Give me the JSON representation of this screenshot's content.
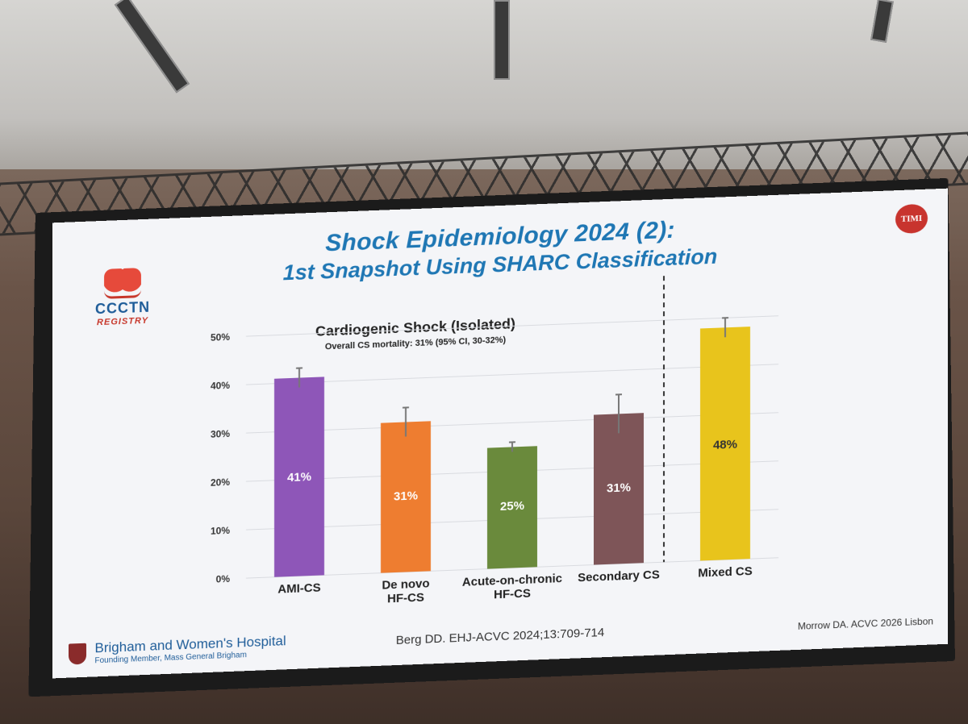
{
  "slide": {
    "title_line1": "Shock Epidemiology 2024 (2):",
    "title_line2": "1st Snapshot Using SHARC Classification",
    "logo_left_name": "CCCTN",
    "logo_left_sub": "REGISTRY",
    "logo_right": "TIMI",
    "footer_hospital": "Brigham and Women's Hospital",
    "footer_hospital_sub": "Founding Member, Mass General Brigham",
    "footer_citation": "Berg DD. EHJ-ACVC 2024;13:709-714",
    "footer_presenter": "Morrow DA. ACVC 2026 Lisbon"
  },
  "chart_data": {
    "type": "bar",
    "title": "Cardiogenic Shock (Isolated)",
    "subtitle": "Overall CS mortality: 31% (95% CI, 30-32%)",
    "categories": [
      [
        "AMI-CS"
      ],
      [
        "De novo",
        "HF-CS"
      ],
      [
        "Acute-on-chronic",
        "HF-CS"
      ],
      [
        "Secondary CS"
      ],
      [
        "Mixed CS"
      ]
    ],
    "values": [
      41,
      31,
      25,
      31,
      48
    ],
    "value_labels": [
      "41%",
      "31%",
      "25%",
      "31%",
      "48%"
    ],
    "error_low": [
      39,
      28,
      24,
      27,
      46
    ],
    "error_high": [
      43,
      34,
      26,
      35,
      50
    ],
    "colors": [
      "#8e56b8",
      "#ee7d30",
      "#6a8a3c",
      "#7e5558",
      "#e8c41c"
    ],
    "yticks": [
      "0%",
      "10%",
      "20%",
      "30%",
      "40%",
      "50%"
    ],
    "ylim": [
      0,
      50
    ],
    "separator_before_index": 4,
    "grid": true
  }
}
